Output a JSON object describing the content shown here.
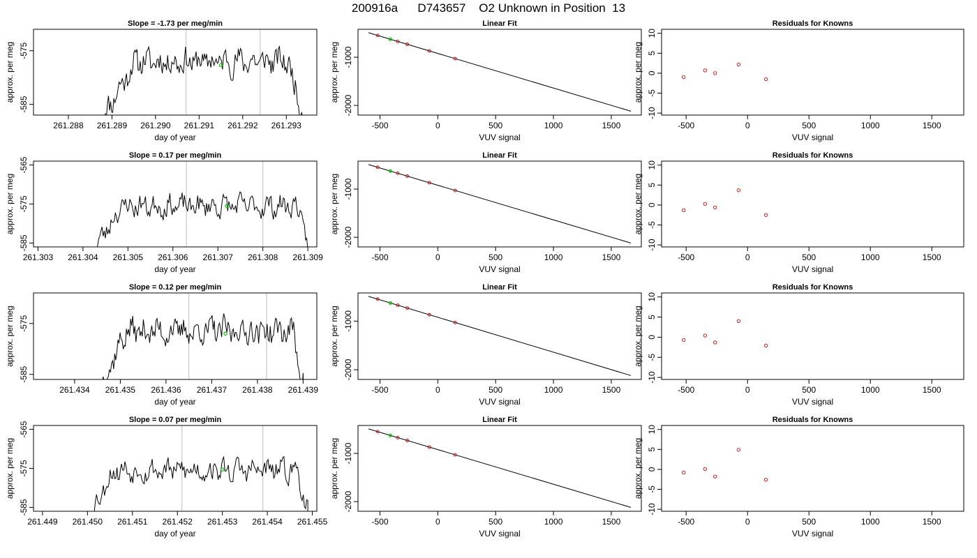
{
  "page": {
    "title": "200916a      D743657    O2 Unknown in Position  13"
  },
  "chart_data": [
    {
      "type": "line",
      "kind": "time",
      "row": 0,
      "title": "Slope =  -1.73  per meg/min",
      "xlabel": "day of year",
      "ylabel": "approx. per meg",
      "xlim": [
        261.2872,
        261.2937
      ],
      "ylim": [
        -587,
        -571
      ],
      "xticks": [
        261.288,
        261.289,
        261.29,
        261.291,
        261.292,
        261.293
      ],
      "xtick_labels": [
        "261.288",
        "261.289",
        "261.290",
        "261.291",
        "261.292",
        "261.293"
      ],
      "yticks": [
        -575,
        -585
      ],
      "ytick_labels": [
        "-575",
        "-585"
      ],
      "vlines": [
        261.2907,
        261.2924
      ],
      "signal": {
        "x0": 261.2888,
        "x1": 261.2934,
        "base": -577,
        "rise": 0.16,
        "fall": 0.08,
        "amp": 1.3,
        "seed": 11
      },
      "highlight": {
        "x": 261.2915,
        "y": -577.7
      }
    },
    {
      "type": "line",
      "kind": "fit",
      "row": 0,
      "title": "Linear Fit",
      "xlabel": "VUV signal",
      "ylabel": "approx. per meg",
      "xlim": [
        -690,
        1760
      ],
      "ylim": [
        -2200,
        -420
      ],
      "xticks": [
        -500,
        0,
        500,
        1000,
        1500
      ],
      "xtick_labels": [
        "-500",
        "0",
        "500",
        "1000",
        "1500"
      ],
      "yticks": [
        -1000,
        -2000
      ],
      "ytick_labels": [
        "-1000",
        "-2000"
      ],
      "line": [
        [
          -600,
          -490
        ],
        [
          1670,
          -2120
        ]
      ],
      "points_x": [
        -520,
        -346,
        -264,
        -73,
        150
      ],
      "highlight": {
        "x": -410
      }
    },
    {
      "type": "scatter",
      "kind": "resid",
      "row": 0,
      "title": "Residuals for Knowns",
      "xlabel": "VUV signal",
      "ylabel": "approx. per meg",
      "xlim": [
        -700,
        1760
      ],
      "ylim": [
        -10.5,
        11
      ],
      "xticks": [
        -500,
        0,
        500,
        1000,
        1500
      ],
      "xtick_labels": [
        "-500",
        "0",
        "500",
        "1000",
        "1500"
      ],
      "yticks": [
        10,
        5,
        0,
        -5,
        -10
      ],
      "ytick_labels": [
        "10",
        "5",
        "0",
        "-5",
        "-10"
      ],
      "x": [
        -520,
        -346,
        -264,
        -73,
        150
      ],
      "y": [
        -1.0,
        0.7,
        0.0,
        2.2,
        -1.5
      ]
    },
    {
      "type": "line",
      "kind": "time",
      "row": 1,
      "title": "Slope =  0.17  per meg/min",
      "xlabel": "day of year",
      "ylabel": "approx. per meg",
      "xlim": [
        261.3029,
        261.3092
      ],
      "ylim": [
        -586,
        -564
      ],
      "xticks": [
        261.303,
        261.304,
        261.305,
        261.306,
        261.307,
        261.308,
        261.309
      ],
      "xtick_labels": [
        "261.303",
        "261.304",
        "261.305",
        "261.306",
        "261.307",
        "261.308",
        "261.309"
      ],
      "yticks": [
        -565,
        -575,
        -585
      ],
      "ytick_labels": [
        "-565",
        "-575",
        "-585"
      ],
      "vlines": [
        261.3063,
        261.308
      ],
      "signal": {
        "x0": 261.3043,
        "x1": 261.309,
        "base": -575.5,
        "rise": 0.12,
        "fall": 0.05,
        "amp": 1.5,
        "seed": 23
      },
      "highlight": {
        "x": 261.3072,
        "y": -575.5
      }
    },
    {
      "type": "line",
      "kind": "fit",
      "row": 1,
      "title": "Linear Fit",
      "xlabel": "VUV signal",
      "ylabel": "approx. per meg",
      "xlim": [
        -690,
        1760
      ],
      "ylim": [
        -2200,
        -420
      ],
      "xticks": [
        -500,
        0,
        500,
        1000,
        1500
      ],
      "xtick_labels": [
        "-500",
        "0",
        "500",
        "1000",
        "1500"
      ],
      "yticks": [
        -1000,
        -2000
      ],
      "ytick_labels": [
        "-1000",
        "-2000"
      ],
      "line": [
        [
          -600,
          -490
        ],
        [
          1670,
          -2120
        ]
      ],
      "points_x": [
        -520,
        -346,
        -264,
        -73,
        150
      ],
      "highlight": {
        "x": -410
      }
    },
    {
      "type": "scatter",
      "kind": "resid",
      "row": 1,
      "title": "Residuals for Knowns",
      "xlabel": "VUV signal",
      "ylabel": "approx. per meg",
      "xlim": [
        -700,
        1760
      ],
      "ylim": [
        -10.5,
        11
      ],
      "xticks": [
        -500,
        0,
        500,
        1000,
        1500
      ],
      "xtick_labels": [
        "-500",
        "0",
        "500",
        "1000",
        "1500"
      ],
      "yticks": [
        10,
        5,
        0,
        -5,
        -10
      ],
      "ytick_labels": [
        "10",
        "5",
        "0",
        "-5",
        "-10"
      ],
      "x": [
        -520,
        -346,
        -264,
        -73,
        150
      ],
      "y": [
        -1.3,
        0.3,
        -0.6,
        3.7,
        -2.5
      ]
    },
    {
      "type": "line",
      "kind": "time",
      "row": 2,
      "title": "Slope =  0.12  per meg/min",
      "xlabel": "day of year",
      "ylabel": "approx. per meg",
      "xlim": [
        261.4331,
        261.4393
      ],
      "ylim": [
        -586,
        -569
      ],
      "xticks": [
        261.434,
        261.435,
        261.436,
        261.437,
        261.438,
        261.439
      ],
      "xtick_labels": [
        "261.434",
        "261.435",
        "261.436",
        "261.437",
        "261.438",
        "261.439"
      ],
      "yticks": [
        -575,
        -585
      ],
      "ytick_labels": [
        "-575",
        "-585"
      ],
      "vlines": [
        261.4365,
        261.4382
      ],
      "signal": {
        "x0": 261.4346,
        "x1": 261.439,
        "base": -576.5,
        "rise": 0.12,
        "fall": 0.05,
        "amp": 1.4,
        "seed": 37
      },
      "highlight": {
        "x": 261.4373,
        "y": -577.0
      }
    },
    {
      "type": "line",
      "kind": "fit",
      "row": 2,
      "title": "Linear Fit",
      "xlabel": "VUV signal",
      "ylabel": "approx. per meg",
      "xlim": [
        -690,
        1760
      ],
      "ylim": [
        -2200,
        -420
      ],
      "xticks": [
        -500,
        0,
        500,
        1000,
        1500
      ],
      "xtick_labels": [
        "-500",
        "0",
        "500",
        "1000",
        "1500"
      ],
      "yticks": [
        -1000,
        -2000
      ],
      "ytick_labels": [
        "-1000",
        "-2000"
      ],
      "line": [
        [
          -600,
          -490
        ],
        [
          1670,
          -2120
        ]
      ],
      "points_x": [
        -520,
        -346,
        -264,
        -73,
        150
      ],
      "highlight": {
        "x": -410
      }
    },
    {
      "type": "scatter",
      "kind": "resid",
      "row": 2,
      "title": "Residuals for Knowns",
      "xlabel": "VUV signal",
      "ylabel": "approx. per meg",
      "xlim": [
        -700,
        1760
      ],
      "ylim": [
        -10.5,
        11
      ],
      "xticks": [
        -500,
        0,
        500,
        1000,
        1500
      ],
      "xtick_labels": [
        "-500",
        "0",
        "500",
        "1000",
        "1500"
      ],
      "yticks": [
        10,
        5,
        0,
        -5,
        -10
      ],
      "ytick_labels": [
        "10",
        "5",
        "0",
        "-5",
        "-10"
      ],
      "x": [
        -520,
        -346,
        -264,
        -73,
        150
      ],
      "y": [
        -0.7,
        0.4,
        -1.3,
        4.0,
        -2.1
      ]
    },
    {
      "type": "line",
      "kind": "time",
      "row": 3,
      "title": "Slope =  0.07  per meg/min",
      "xlabel": "day of year",
      "ylabel": "approx. per meg",
      "xlim": [
        261.4488,
        261.4551
      ],
      "ylim": [
        -586,
        -564
      ],
      "xticks": [
        261.449,
        261.45,
        261.451,
        261.452,
        261.453,
        261.454,
        261.455
      ],
      "xtick_labels": [
        "261.449",
        "261.450",
        "261.451",
        "261.452",
        "261.453",
        "261.454",
        "261.455"
      ],
      "yticks": [
        -565,
        -575,
        -585
      ],
      "ytick_labels": [
        "-565",
        "-575",
        "-585"
      ],
      "vlines": [
        261.4521,
        261.4539
      ],
      "signal": {
        "x0": 261.4501,
        "x1": 261.4549,
        "base": -575.5,
        "rise": 0.1,
        "fall": 0.05,
        "amp": 1.5,
        "seed": 53
      },
      "highlight": {
        "x": 261.453,
        "y": -575.3
      }
    },
    {
      "type": "line",
      "kind": "fit",
      "row": 3,
      "title": "Linear Fit",
      "xlabel": "VUV signal",
      "ylabel": "approx. per meg",
      "xlim": [
        -690,
        1760
      ],
      "ylim": [
        -2200,
        -420
      ],
      "xticks": [
        -500,
        0,
        500,
        1000,
        1500
      ],
      "xtick_labels": [
        "-500",
        "0",
        "500",
        "1000",
        "1500"
      ],
      "yticks": [
        -1000,
        -2000
      ],
      "ytick_labels": [
        "-1000",
        "-2000"
      ],
      "line": [
        [
          -600,
          -490
        ],
        [
          1670,
          -2120
        ]
      ],
      "points_x": [
        -520,
        -346,
        -264,
        -73,
        150
      ],
      "highlight": {
        "x": -410
      }
    },
    {
      "type": "scatter",
      "kind": "resid",
      "row": 3,
      "title": "Residuals for Knowns",
      "xlabel": "VUV signal",
      "ylabel": "approx. per meg",
      "xlim": [
        -700,
        1760
      ],
      "ylim": [
        -10.5,
        11
      ],
      "xticks": [
        -500,
        0,
        500,
        1000,
        1500
      ],
      "xtick_labels": [
        "-500",
        "0",
        "500",
        "1000",
        "1500"
      ],
      "yticks": [
        10,
        5,
        0,
        -5,
        -10
      ],
      "ytick_labels": [
        "10",
        "5",
        "0",
        "-5",
        "-10"
      ],
      "x": [
        -520,
        -346,
        -264,
        -73,
        150
      ],
      "y": [
        -0.8,
        0.1,
        -1.8,
        4.9,
        -2.6
      ]
    }
  ],
  "colors": {
    "axis": "#000000",
    "vline": "#c8c8c8",
    "highlight": "#00cc00",
    "residual": "#cc0000",
    "fit_point": "#cc0000"
  }
}
